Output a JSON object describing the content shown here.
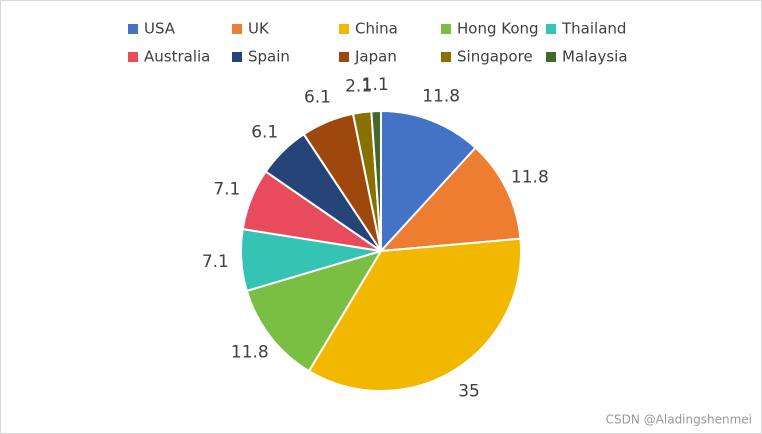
{
  "chart_data": {
    "type": "pie",
    "categories": [
      "USA",
      "UK",
      "China",
      "Hong Kong",
      "Thailand",
      "Australia",
      "Spain",
      "Japan",
      "Singapore",
      "Malaysia"
    ],
    "values": [
      11.8,
      11.8,
      35,
      11.8,
      7.1,
      7.1,
      6.1,
      6.1,
      2.1,
      1.1
    ],
    "colors": [
      "#4472c4",
      "#ed7d31",
      "#f2b800",
      "#7abf44",
      "#35c4b4",
      "#e84c5c",
      "#264478",
      "#9e480e",
      "#8a7000",
      "#43682b"
    ],
    "legend": "top",
    "watermark": "CSDN @Aladingshenmei"
  }
}
